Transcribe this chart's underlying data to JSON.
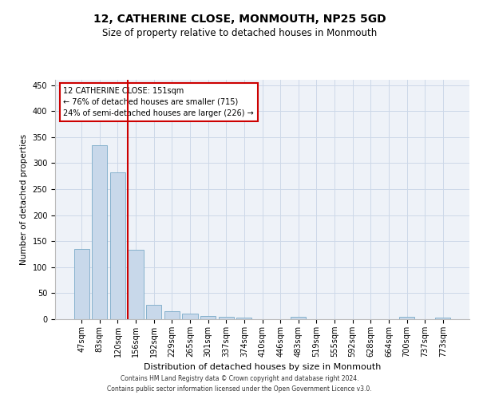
{
  "title": "12, CATHERINE CLOSE, MONMOUTH, NP25 5GD",
  "subtitle": "Size of property relative to detached houses in Monmouth",
  "xlabel": "Distribution of detached houses by size in Monmouth",
  "ylabel": "Number of detached properties",
  "bin_labels": [
    "47sqm",
    "83sqm",
    "120sqm",
    "156sqm",
    "192sqm",
    "229sqm",
    "265sqm",
    "301sqm",
    "337sqm",
    "374sqm",
    "410sqm",
    "446sqm",
    "483sqm",
    "519sqm",
    "555sqm",
    "592sqm",
    "628sqm",
    "664sqm",
    "700sqm",
    "737sqm",
    "773sqm"
  ],
  "bar_heights": [
    135,
    335,
    282,
    133,
    27,
    15,
    11,
    6,
    5,
    3,
    0,
    0,
    5,
    0,
    0,
    0,
    0,
    0,
    4,
    0,
    3
  ],
  "bar_color": "#c8d8ea",
  "bar_edge_color": "#7aaac8",
  "vline_color": "#cc0000",
  "vline_x_index": 3,
  "annotation_text": "12 CATHERINE CLOSE: 151sqm\n← 76% of detached houses are smaller (715)\n24% of semi-detached houses are larger (226) →",
  "annotation_box_edgecolor": "#cc0000",
  "ylim": [
    0,
    460
  ],
  "yticks": [
    0,
    50,
    100,
    150,
    200,
    250,
    300,
    350,
    400,
    450
  ],
  "grid_color": "#ccd8e8",
  "background_color": "#eef2f8",
  "footer_line1": "Contains HM Land Registry data © Crown copyright and database right 2024.",
  "footer_line2": "Contains public sector information licensed under the Open Government Licence v3.0.",
  "title_fontsize": 10,
  "subtitle_fontsize": 8.5,
  "xlabel_fontsize": 8,
  "ylabel_fontsize": 7.5,
  "tick_fontsize": 7,
  "annotation_fontsize": 7,
  "footer_fontsize": 5.5
}
